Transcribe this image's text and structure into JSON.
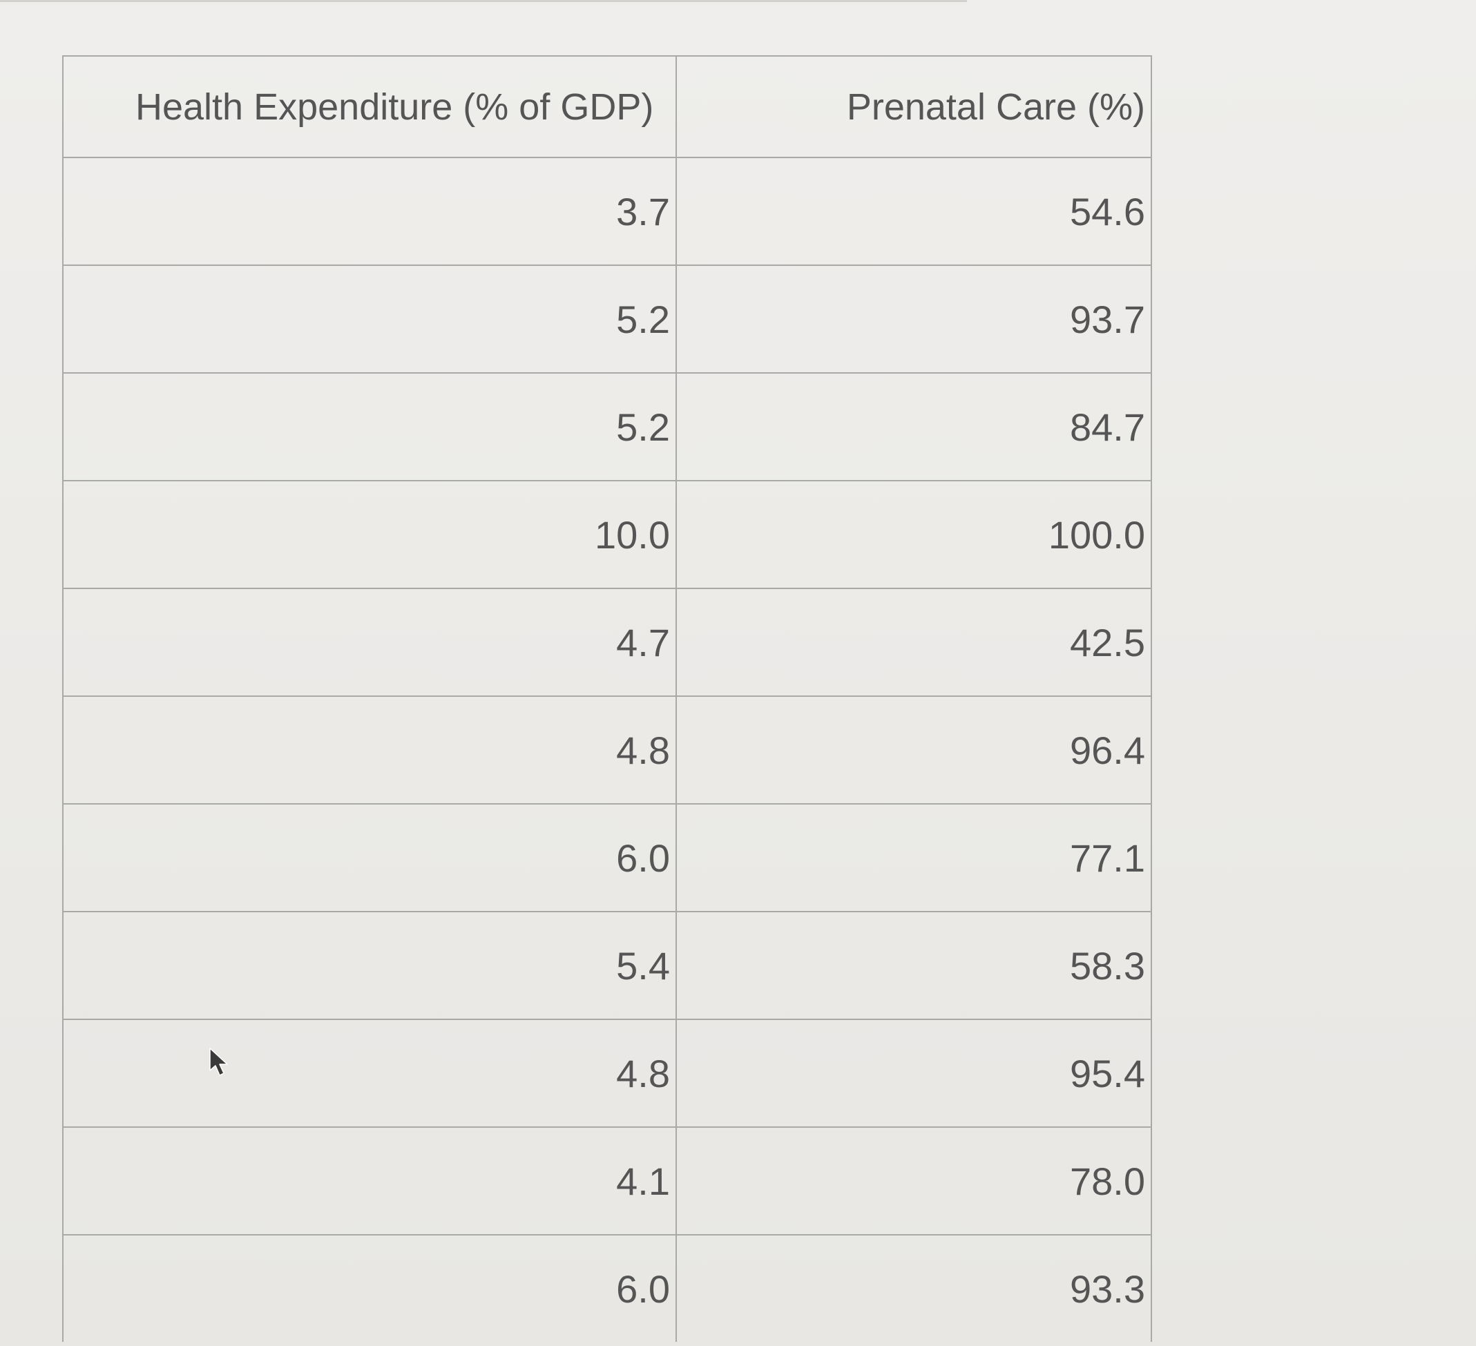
{
  "table": {
    "headers": [
      "Health Expenditure (% of GDP)",
      "Prenatal Care (%)"
    ],
    "rows": [
      [
        "3.7",
        "54.6"
      ],
      [
        "5.2",
        "93.7"
      ],
      [
        "5.2",
        "84.7"
      ],
      [
        "10.0",
        "100.0"
      ],
      [
        "4.7",
        "42.5"
      ],
      [
        "4.8",
        "96.4"
      ],
      [
        "6.0",
        "77.1"
      ],
      [
        "5.4",
        "58.3"
      ],
      [
        "4.8",
        "95.4"
      ],
      [
        "4.1",
        "78.0"
      ],
      [
        "6.0",
        "93.3"
      ]
    ]
  },
  "icons": {
    "cursor": "mouse-pointer-icon"
  }
}
